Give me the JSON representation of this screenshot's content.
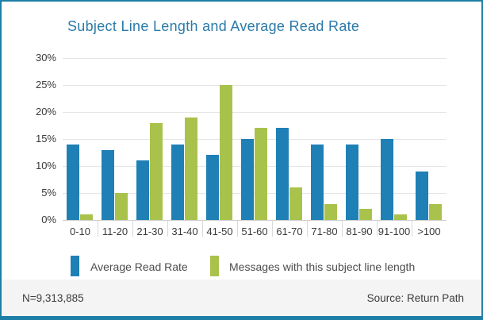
{
  "chart_data": {
    "type": "bar",
    "title": "Subject Line Length and Average Read Rate",
    "categories": [
      "0-10",
      "11-20",
      "21-30",
      "31-40",
      "41-50",
      "51-60",
      "61-70",
      "71-80",
      "81-90",
      "91-100",
      ">100"
    ],
    "series": [
      {
        "name": "Average Read Rate",
        "color": "#1f80b6",
        "values": [
          14,
          13,
          11,
          14,
          12,
          15,
          17,
          14,
          14,
          15,
          9
        ]
      },
      {
        "name": "Messages with this subject line length",
        "color": "#a9c24c",
        "values": [
          1,
          5,
          18,
          19,
          25,
          17,
          6,
          3,
          2,
          1,
          3
        ]
      }
    ],
    "xlabel": "",
    "ylabel": "",
    "ylim": [
      0,
      30
    ],
    "ytick_step": 5,
    "ytick_labels": [
      "0%",
      "5%",
      "10%",
      "15%",
      "20%",
      "25%",
      "30%"
    ],
    "grid": true,
    "legend_position": "bottom"
  },
  "footer": {
    "sample_size": "N=9,313,885",
    "source": "Source: Return Path"
  },
  "colors": {
    "accent_border": "#1d7fa6",
    "title": "#2b7aa9",
    "bar_blue": "#1f80b6",
    "bar_green": "#a9c24c",
    "gridline": "#e4e4e4",
    "footer_bg": "#f4f4f4"
  }
}
